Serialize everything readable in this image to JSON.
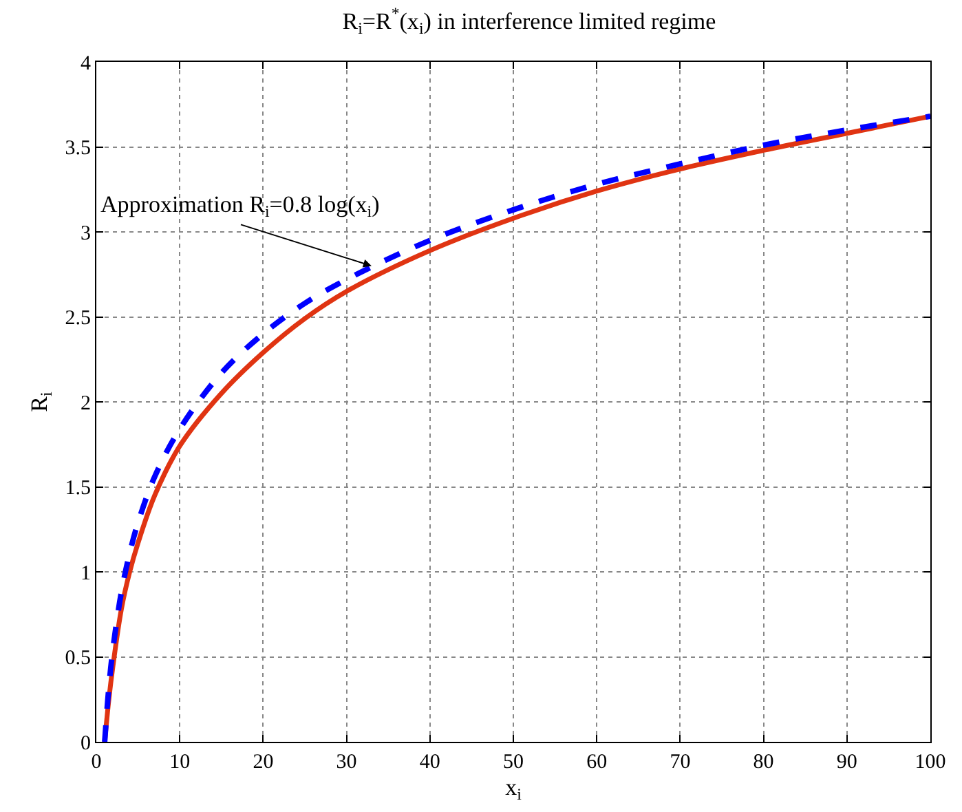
{
  "chart_data": {
    "type": "line",
    "title": "R$_{i}$=R$^{*}$(x$_{i}$) in interference limited regime",
    "xlabel": "x$_{i}$",
    "ylabel": "R$_{i}$",
    "x": [
      1,
      1.5,
      2,
      3,
      4,
      5,
      7,
      10,
      15,
      20,
      25,
      30,
      40,
      50,
      60,
      70,
      80,
      90,
      100
    ],
    "series": [
      {
        "color": "#e03412",
        "line_style": "solid",
        "values": [
          0,
          0.25,
          0.45,
          0.78,
          1.0,
          1.17,
          1.45,
          1.74,
          2.05,
          2.29,
          2.49,
          2.65,
          2.89,
          3.08,
          3.24,
          3.37,
          3.48,
          3.58,
          3.68
        ]
      },
      {
        "color": "#0000ff",
        "line_style": "dashed",
        "values": [
          0,
          0.32,
          0.55,
          0.88,
          1.11,
          1.29,
          1.56,
          1.84,
          2.17,
          2.4,
          2.58,
          2.72,
          2.95,
          3.13,
          3.28,
          3.4,
          3.51,
          3.6,
          3.68
        ]
      }
    ],
    "annotations": [
      {
        "text": "Approximation R$_{i}$=0.8 log(x$_{i}$)",
        "x": 33,
        "y": 2.8
      }
    ],
    "xlim": [
      0,
      100
    ],
    "xticks": [
      0,
      10,
      20,
      30,
      40,
      50,
      60,
      70,
      80,
      90,
      100
    ],
    "ylim": [
      0,
      4
    ],
    "yticks": [
      0,
      0.5,
      1,
      1.5,
      2,
      2.5,
      3,
      3.5,
      4
    ],
    "grid": true
  }
}
